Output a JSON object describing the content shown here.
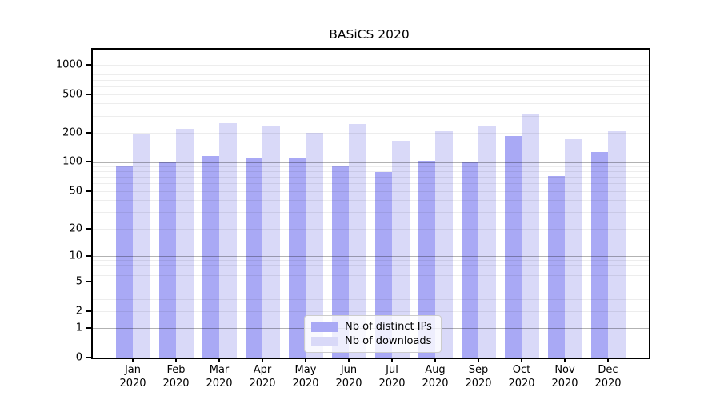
{
  "chart_data": {
    "type": "bar",
    "title": "BASiCS 2020",
    "categories": [
      "Jan",
      "Feb",
      "Mar",
      "Apr",
      "May",
      "Jun",
      "Jul",
      "Aug",
      "Sep",
      "Oct",
      "Nov",
      "Dec"
    ],
    "category_year": "2020",
    "series": [
      {
        "name": "Nb of distinct IPs",
        "color": "#a9a9f5",
        "values": [
          91,
          99,
          115,
          110,
          108,
          91,
          79,
          103,
          99,
          187,
          71,
          127
        ]
      },
      {
        "name": "Nb of downloads",
        "color": "#d9d9f8",
        "values": [
          192,
          221,
          252,
          234,
          201,
          248,
          166,
          207,
          236,
          315,
          171,
          208
        ]
      }
    ],
    "yscale": "log1p",
    "y_ticks": [
      1000,
      500,
      200,
      100,
      50,
      20,
      10,
      5,
      2,
      1,
      0
    ],
    "ylim": [
      0,
      1430
    ],
    "grid": "on",
    "major_grid_values": [
      1,
      10,
      100
    ],
    "legend_position": "lower center"
  },
  "colors": {
    "spine": "#000000",
    "bar_ips": "#a9a9f5",
    "bar_downloads": "#d9d9f8",
    "legend_border": "#cccccc"
  }
}
